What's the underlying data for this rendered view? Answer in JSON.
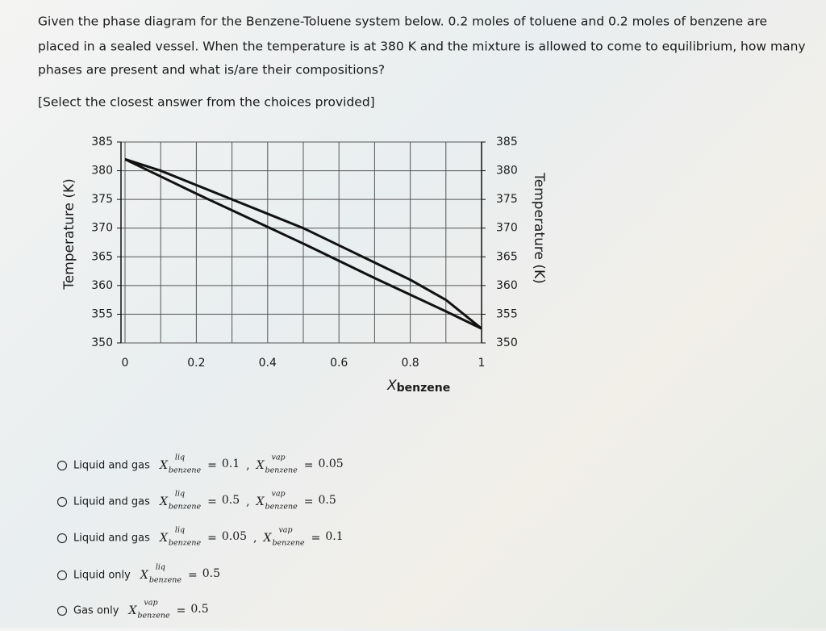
{
  "question": {
    "lines": [
      "Given the phase diagram for the Benzene-Toluene system below. 0.2 moles of toluene and 0.2 moles of benzene are",
      "placed in a sealed vessel. When the temperature is at 380 K and the mixture is allowed to come to equilibrium, how many",
      "phases are present and what is/are their compositions?"
    ],
    "instruction": "[Select the closest answer from the choices provided]"
  },
  "chart_data": {
    "type": "line",
    "y_label": "Temperature (K)",
    "x_label": "X",
    "x_label_sub": "benzene",
    "x": [
      0,
      0.1,
      0.2,
      0.3,
      0.4,
      0.5,
      0.6,
      0.7,
      0.8,
      0.9,
      1
    ],
    "series": [
      {
        "color": "#111111",
        "values": [
          382,
          380,
          377.5,
          375,
          372.5,
          370,
          367,
          364,
          361,
          357.5,
          352.5
        ]
      },
      {
        "color": "#111111",
        "values": [
          382,
          379,
          376,
          373.1,
          370.2,
          367.3,
          364.3,
          361.3,
          358.4,
          355.5,
          352.5
        ]
      }
    ],
    "xlim": [
      0,
      1
    ],
    "ylim": [
      350,
      385
    ],
    "xticks": [
      0,
      0.2,
      0.4,
      0.6,
      0.8,
      1
    ],
    "xgrid": [
      0,
      0.1,
      0.2,
      0.3,
      0.4,
      0.5,
      0.6,
      0.7,
      0.8,
      0.9,
      1
    ],
    "yticks": [
      350,
      355,
      360,
      365,
      370,
      375,
      380,
      385
    ],
    "grid": true
  },
  "options": [
    {
      "label": "Liquid and gas",
      "separator": ",",
      "terms": [
        {
          "symbol": "X",
          "sup": "liq",
          "sub": "benzene",
          "relation": "=",
          "value": 0.1
        },
        {
          "symbol": "X",
          "sup": "vap",
          "sub": "benzene",
          "relation": "=",
          "value": 0.05
        }
      ]
    },
    {
      "label": "Liquid and gas",
      "separator": ",",
      "terms": [
        {
          "symbol": "X",
          "sup": "liq",
          "sub": "benzene",
          "relation": "=",
          "value": 0.5
        },
        {
          "symbol": "X",
          "sup": "vap",
          "sub": "benzene",
          "relation": "=",
          "value": 0.5
        }
      ]
    },
    {
      "label": "Liquid and gas",
      "separator": ",",
      "terms": [
        {
          "symbol": "X",
          "sup": "liq",
          "sub": "benzene",
          "relation": "=",
          "value": 0.05
        },
        {
          "symbol": "X",
          "sup": "vap",
          "sub": "benzene",
          "relation": "=",
          "value": 0.1
        }
      ]
    },
    {
      "label": "Liquid only",
      "terms": [
        {
          "symbol": "X",
          "sup": "liq",
          "sub": "benzene",
          "relation": "=",
          "value": 0.5
        }
      ]
    },
    {
      "label": "Gas only",
      "terms": [
        {
          "symbol": "X",
          "sup": "vap",
          "sub": "benzene",
          "relation": "=",
          "value": 0.5
        }
      ]
    }
  ]
}
